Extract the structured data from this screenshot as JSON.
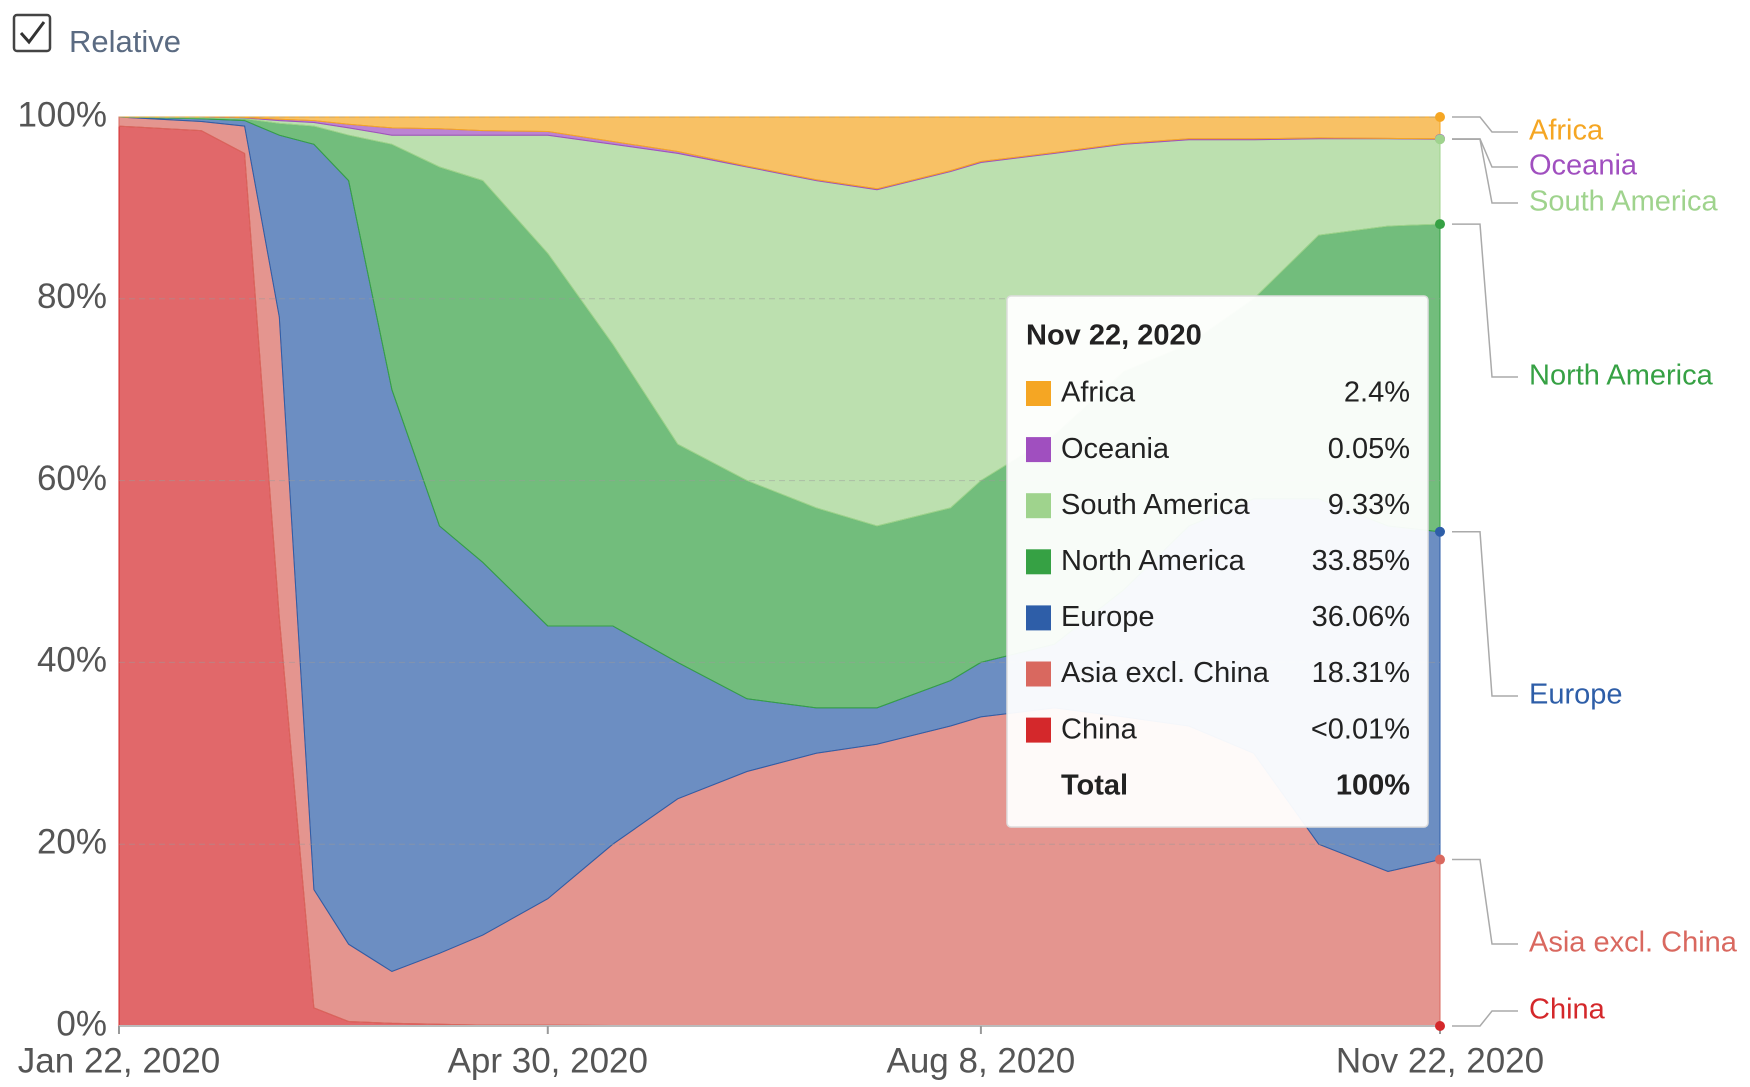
{
  "relative_toggle": {
    "label": "Relative",
    "checked": true
  },
  "chart_data": {
    "type": "stacked_area",
    "x": [
      "2020-01-22",
      "2020-02-10",
      "2020-02-20",
      "2020-02-28",
      "2020-03-07",
      "2020-03-15",
      "2020-03-25",
      "2020-04-05",
      "2020-04-15",
      "2020-04-30",
      "2020-05-15",
      "2020-05-30",
      "2020-06-15",
      "2020-07-01",
      "2020-07-15",
      "2020-08-01",
      "2020-08-08",
      "2020-08-25",
      "2020-09-10",
      "2020-09-25",
      "2020-10-10",
      "2020-10-25",
      "2020-11-10",
      "2020-11-22"
    ],
    "series": [
      {
        "name": "Africa",
        "color": "#f5a623",
        "values": [
          0,
          0,
          0.05,
          0.25,
          0.4,
          0.8,
          1.2,
          1.3,
          1.5,
          1.6,
          2.7,
          3.8,
          5.4,
          6.9,
          7.9,
          5.9,
          4.9,
          3.9,
          2.9,
          2.4,
          2.4,
          2.3,
          2.35,
          2.4
        ]
      },
      {
        "name": "Oceania",
        "color": "#a04fbf",
        "values": [
          0,
          0,
          0.05,
          0.15,
          0.2,
          0.4,
          0.8,
          0.7,
          0.5,
          0.4,
          0.3,
          0.2,
          0.1,
          0.1,
          0.1,
          0.1,
          0.1,
          0.1,
          0.1,
          0.1,
          0.1,
          0.1,
          0.05,
          0.05
        ]
      },
      {
        "name": "South America",
        "color": "#9fd38d",
        "values": [
          0,
          0.1,
          0.1,
          0.3,
          0.4,
          0.8,
          1,
          3.5,
          5,
          13,
          22,
          32,
          34.5,
          36,
          37,
          37,
          35,
          31,
          25,
          22.5,
          17.5,
          10.6,
          9.6,
          9.33
        ]
      },
      {
        "name": "North America",
        "color": "#36a144",
        "values": [
          0,
          0.1,
          0.2,
          1.3,
          2,
          5,
          27,
          39.5,
          42,
          41,
          31,
          24,
          24,
          22,
          20,
          19,
          20,
          23,
          24,
          20,
          22,
          29,
          33,
          33.85
        ]
      },
      {
        "name": "Europe",
        "color": "#2e5ea8",
        "values": [
          0,
          0.3,
          0.6,
          20,
          82,
          84,
          64,
          47,
          41,
          30,
          24,
          15,
          8,
          5,
          4,
          5,
          6,
          7,
          14,
          22,
          28,
          38,
          38,
          36.06
        ]
      },
      {
        "name": "Asia excl. China",
        "color": "#d9685f",
        "values": [
          1,
          1,
          3,
          33,
          13,
          8.5,
          5.7,
          7.8,
          9.9,
          13.9,
          19.95,
          24.95,
          27.98,
          29.98,
          30.98,
          32.98,
          33.98,
          34.99,
          33.99,
          32.99,
          29.99,
          19.99,
          16.99,
          18.31
        ]
      },
      {
        "name": "China",
        "color": "#d4282b",
        "values": [
          99,
          98.5,
          96,
          45,
          2,
          0.5,
          0.3,
          0.2,
          0.1,
          0.1,
          0.05,
          0.05,
          0.02,
          0.02,
          0.02,
          0.02,
          0.02,
          0.01,
          0.01,
          0.01,
          0.01,
          0.01,
          0.01,
          0
        ]
      }
    ],
    "xlim": [
      "2020-01-22",
      "2020-11-22"
    ],
    "xticks": [
      {
        "value": "2020-01-22",
        "label": "Jan 22, 2020"
      },
      {
        "value": "2020-04-30",
        "label": "Apr 30, 2020"
      },
      {
        "value": "2020-08-08",
        "label": "Aug 8, 2020"
      },
      {
        "value": "2020-11-22",
        "label": "Nov 22, 2020"
      }
    ],
    "ylim": [
      0,
      100
    ],
    "yticks": [
      {
        "value": 0,
        "label": "0%"
      },
      {
        "value": 20,
        "label": "20%"
      },
      {
        "value": 40,
        "label": "40%"
      },
      {
        "value": 60,
        "label": "60%"
      },
      {
        "value": 80,
        "label": "80%"
      },
      {
        "value": 100,
        "label": "100%"
      }
    ],
    "grid": true,
    "tooltip": {
      "title": "Nov 22, 2020",
      "value_labels": [
        "2.4%",
        "0.05%",
        "9.33%",
        "33.85%",
        "36.06%",
        "18.31%",
        "<0.01%"
      ],
      "total_label": "Total",
      "total_value_label": "100%"
    }
  }
}
